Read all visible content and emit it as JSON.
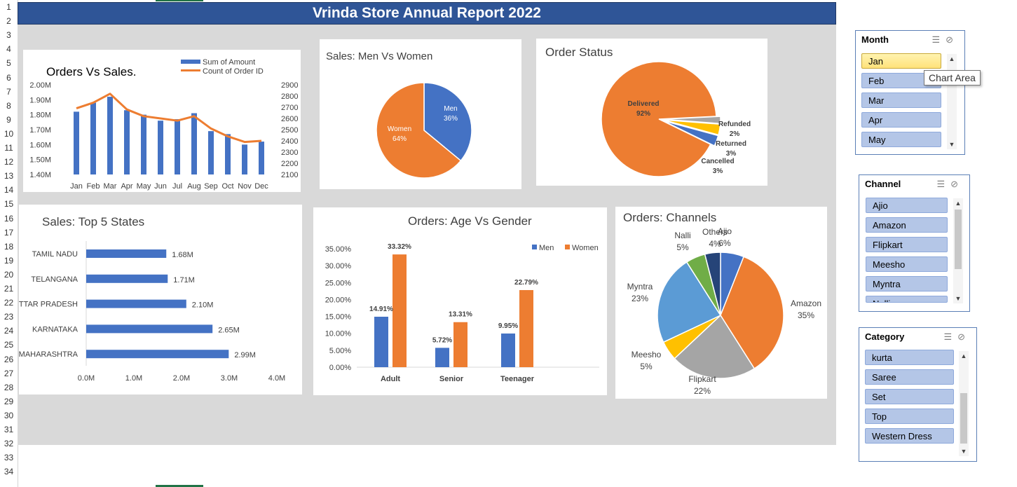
{
  "report_title": "Vrinda Store Annual Report 2022",
  "row_numbers": [
    "1",
    "2",
    "3",
    "4",
    "5",
    "6",
    "7",
    "8",
    "9",
    "10",
    "11",
    "12",
    "13",
    "14",
    "15",
    "16",
    "17",
    "18",
    "19",
    "20",
    "21",
    "22",
    "23",
    "24",
    "25",
    "26",
    "27",
    "28",
    "29",
    "30",
    "31",
    "32",
    "33",
    "34"
  ],
  "tooltip": "Chart Area",
  "colors": {
    "blue": "#4472c4",
    "orange": "#ed7d31",
    "gray": "#a5a5a5",
    "yellow": "#ffc000",
    "lightblue": "#5b9bd5",
    "green": "#70ad47",
    "navy": "#264478",
    "banner": "#2f5597"
  },
  "chart_data": [
    {
      "id": "orders_vs_sales",
      "type": "bar",
      "title": "Orders Vs Sales.",
      "categories": [
        "Jan",
        "Feb",
        "Mar",
        "Apr",
        "May",
        "Jun",
        "Jul",
        "Aug",
        "Sep",
        "Oct",
        "Nov",
        "Dec"
      ],
      "series": [
        {
          "name": "Sum of Amount",
          "type": "bar",
          "axis": "left",
          "values": [
            1.82,
            1.88,
            1.92,
            1.83,
            1.8,
            1.76,
            1.77,
            1.81,
            1.69,
            1.67,
            1.6,
            1.62
          ]
        },
        {
          "name": "Count of Order ID",
          "type": "line",
          "axis": "right",
          "values": [
            2690,
            2740,
            2820,
            2680,
            2620,
            2600,
            2580,
            2620,
            2510,
            2440,
            2390,
            2400
          ]
        }
      ],
      "y_ticks": [
        "2.00M",
        "1.90M",
        "1.80M",
        "1.70M",
        "1.60M",
        "1.50M",
        "1.40M"
      ],
      "ylim": [
        1.4,
        2.0
      ],
      "y2_ticks": [
        "2900",
        "2800",
        "2700",
        "2600",
        "2500",
        "2400",
        "2300",
        "2200",
        "2100"
      ],
      "y2lim": [
        2100,
        2900
      ]
    },
    {
      "id": "men_vs_women",
      "type": "pie",
      "title": "Sales: Men Vs Women",
      "labels": [
        "Men",
        "Women"
      ],
      "values": [
        36,
        64
      ],
      "display": [
        "36%",
        "64%"
      ]
    },
    {
      "id": "order_status",
      "type": "pie",
      "title": "Order Status",
      "labels": [
        "Delivered",
        "Refunded",
        "Returned",
        "Cancelled"
      ],
      "values": [
        92,
        2,
        3,
        3
      ],
      "display": [
        "92%",
        "2%",
        "3%",
        "3%"
      ]
    },
    {
      "id": "top_states",
      "type": "bar",
      "orientation": "horizontal",
      "title": "Sales: Top 5 States",
      "categories": [
        "TAMIL NADU",
        "TELANGANA",
        "UTTAR PRADESH",
        "KARNATAKA",
        "MAHARASHTRA"
      ],
      "values": [
        1.68,
        1.71,
        2.1,
        2.65,
        2.99
      ],
      "value_labels": [
        "1.68M",
        "1.71M",
        "2.10M",
        "2.65M",
        "2.99M"
      ],
      "x_ticks": [
        "0.0M",
        "1.0M",
        "2.0M",
        "3.0M",
        "4.0M"
      ],
      "xlim": [
        0,
        4
      ]
    },
    {
      "id": "age_vs_gender",
      "type": "bar",
      "title": "Orders: Age Vs Gender",
      "categories": [
        "Adult",
        "Senior",
        "Teenager"
      ],
      "series": [
        {
          "name": "Men",
          "values": [
            14.91,
            5.72,
            9.95
          ],
          "labels": [
            "14.91%",
            "5.72%",
            "9.95%"
          ]
        },
        {
          "name": "Women",
          "values": [
            33.32,
            13.31,
            22.79
          ],
          "labels": [
            "33.32%",
            "13.31%",
            "22.79%"
          ]
        }
      ],
      "y_ticks": [
        "35.00%",
        "30.00%",
        "25.00%",
        "20.00%",
        "15.00%",
        "10.00%",
        "5.00%",
        "0.00%"
      ],
      "ylim": [
        0,
        35
      ],
      "legend": "top-right"
    },
    {
      "id": "channels",
      "type": "pie",
      "title": "Orders: Channels",
      "labels": [
        "Ajio",
        "Amazon",
        "Flipkart",
        "Meesho",
        "Myntra",
        "Nalli",
        "Others"
      ],
      "values": [
        6,
        35,
        22,
        5,
        23,
        5,
        4
      ],
      "display": [
        "6%",
        "35%",
        "22%",
        "5%",
        "23%",
        "5%",
        "4%"
      ]
    }
  ],
  "slicers": [
    {
      "title": "Month",
      "items": [
        "Jan",
        "Feb",
        "Mar",
        "Apr",
        "May"
      ],
      "selected": "Jan"
    },
    {
      "title": "Channel",
      "items": [
        "Ajio",
        "Amazon",
        "Flipkart",
        "Meesho",
        "Myntra",
        "Nalli"
      ]
    },
    {
      "title": "Category",
      "items": [
        "kurta",
        "Saree",
        "Set",
        "Top",
        "Western Dress"
      ]
    }
  ]
}
